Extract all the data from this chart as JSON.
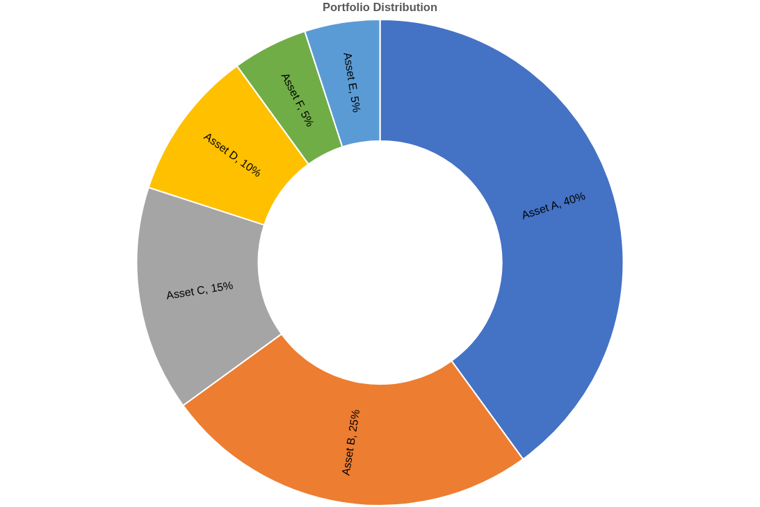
{
  "chart_data": {
    "type": "donut",
    "title": "Portfolio Distribution",
    "categories": [
      "Asset A",
      "Asset B",
      "Asset C",
      "Asset D",
      "Asset F",
      "Asset E"
    ],
    "values": [
      40,
      25,
      15,
      10,
      5,
      5
    ],
    "colors": [
      "#4472c4",
      "#ed7d31",
      "#a5a5a5",
      "#ffc000",
      "#70ad47",
      "#5b9bd5"
    ],
    "value_labels": [
      "40%",
      "25%",
      "15%",
      "10%",
      "5%",
      "5%"
    ]
  }
}
